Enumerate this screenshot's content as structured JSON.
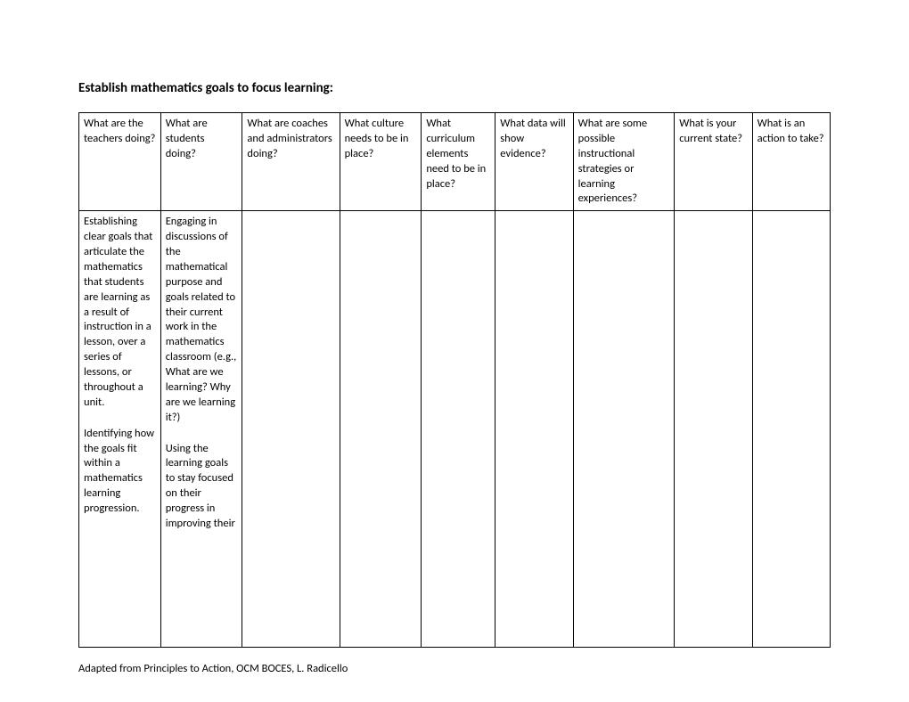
{
  "title": "Establish mathematics goals to focus learning:",
  "columns": [
    "What are the teachers doing?",
    "What are students doing?",
    "What are coaches and administrators doing?",
    "What culture needs to be in place?",
    "What curriculum elements need to be in place?",
    "What data will show evidence?",
    "What are some possible instructional strategies or learning experiences?",
    "What is your current state?",
    "What is an action to take?"
  ],
  "body": {
    "col0": [
      "Establishing clear goals that articulate the mathematics that students are learning as a result of instruction in a lesson, over a series of lessons, or throughout a unit.",
      "Identifying how the goals fit within a mathematics learning progression."
    ],
    "col1": [
      "Engaging in discussions of the mathematical purpose and goals related to their current work in the mathematics classroom (e.g., What are we learning? Why are we learning it?)",
      "Using the learning goals to stay focused on their progress in improving their"
    ]
  },
  "footer": "Adapted from Principles to Action, OCM BOCES, L. Radicello"
}
